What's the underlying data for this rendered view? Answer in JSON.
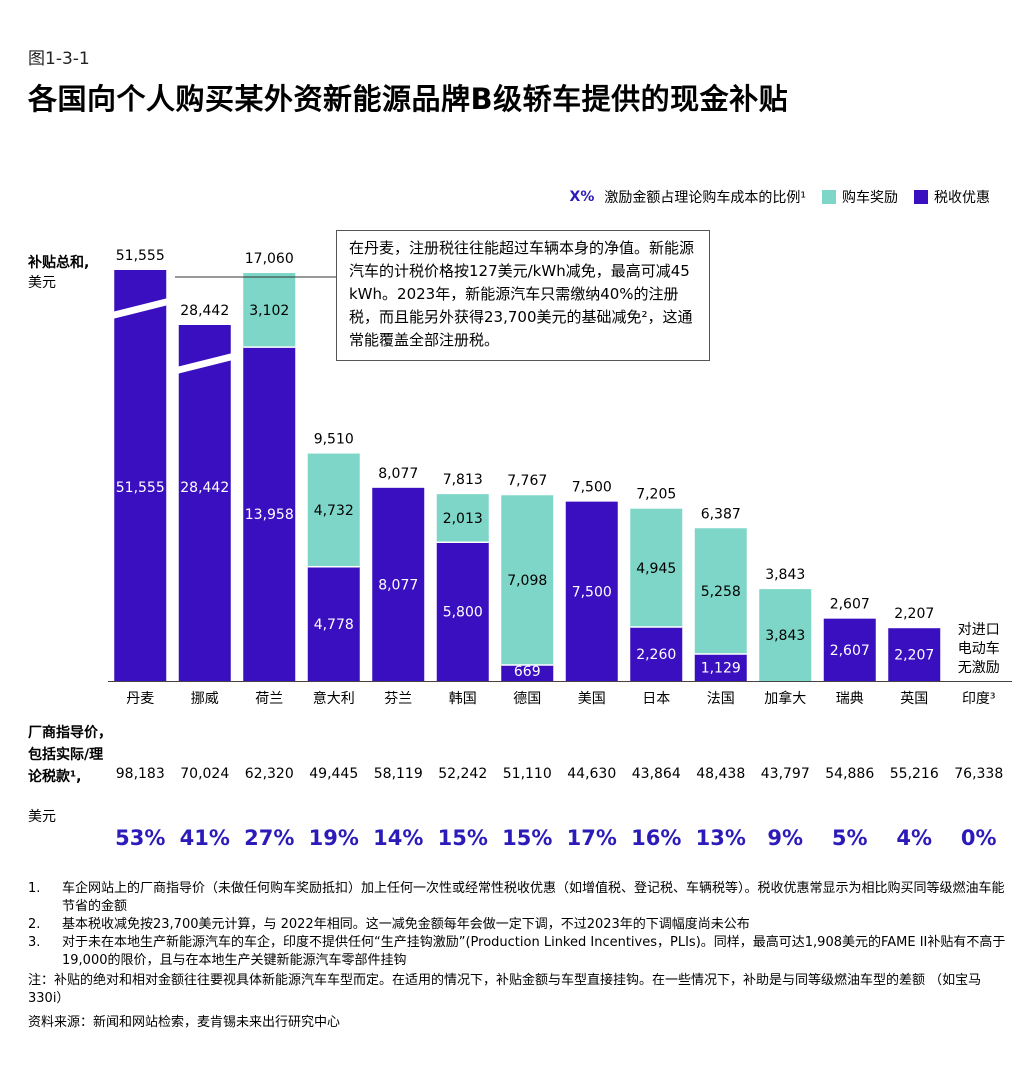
{
  "figure_number": "图1-3-1",
  "title": "各国向个人购买某外资新能源品牌B级轿车提供的现金补贴",
  "legend": {
    "pct_marker": "X%",
    "pct_label": "激励金额占理论购车成本的比例¹",
    "purchase_label": "购车奖励",
    "tax_label": "税收优惠"
  },
  "colors": {
    "purchase": "#7ed6c8",
    "tax": "#3a0fc0",
    "pct_text": "#2c1bb8"
  },
  "y_axis": {
    "title": "补贴总和,",
    "unit": "美元"
  },
  "callout": "在丹麦，注册税往往能超过车辆本身的净值。新能源汽车的计税价格按127美元/kWh减免，最高可减45 kWh。2023年，新能源汽车只需缴纳40%的注册税，而且能另外获得23,700美元的基础减免²，这通常能覆盖全部注册税。",
  "chart_data": {
    "type": "bar",
    "stacked": true,
    "categories": [
      "丹麦",
      "挪威",
      "荷兰",
      "意大利",
      "芬兰",
      "韩国",
      "德国",
      "美国",
      "日本",
      "法国",
      "加拿大",
      "瑞典",
      "英国",
      "印度³"
    ],
    "series": [
      {
        "name": "税收优惠",
        "values": [
          51555,
          28442,
          13958,
          4778,
          8077,
          5800,
          669,
          7500,
          2260,
          1129,
          0,
          2607,
          2207,
          0
        ]
      },
      {
        "name": "购车奖励",
        "values": [
          0,
          0,
          3102,
          4732,
          0,
          2013,
          7098,
          0,
          4945,
          5258,
          3843,
          0,
          0,
          0
        ]
      }
    ],
    "totals": [
      "51,555",
      "28,442",
      "17,060",
      "9,510",
      "8,077",
      "7,813",
      "7,767",
      "7,500",
      "7,205",
      "6,387",
      "3,843",
      "2,607",
      "2,207",
      ""
    ],
    "tax_labels": [
      "51,555",
      "28,442",
      "13,958",
      "4,778",
      "8,077",
      "5,800",
      "669",
      "7,500",
      "2,260",
      "1,129",
      "",
      "2,607",
      "2,207",
      ""
    ],
    "purchase_labels": [
      "",
      "",
      "3,102",
      "4,732",
      "",
      "2,013",
      "7,098",
      "",
      "4,945",
      "5,258",
      "3,843",
      "",
      "",
      ""
    ],
    "axis_breaks": [
      "丹麦",
      "挪威"
    ],
    "no_incentive_note": "对进口电动车无激励",
    "ylabel": "补贴总和,美元",
    "prices_label": "厂商指导价，包括实际/理论税款¹,",
    "prices_unit": "美元",
    "prices": [
      "98,183",
      "70,024",
      "62,320",
      "49,445",
      "58,119",
      "52,242",
      "51,110",
      "44,630",
      "43,864",
      "48,438",
      "43,797",
      "54,886",
      "55,216",
      "76,338"
    ],
    "percentages": [
      "53%",
      "41%",
      "27%",
      "19%",
      "14%",
      "15%",
      "15%",
      "17%",
      "16%",
      "13%",
      "9%",
      "5%",
      "4%",
      "0%"
    ]
  },
  "footnotes": [
    {
      "n": "1.",
      "text": "车企网站上的厂商指导价（未做任何购车奖励抵扣）加上任何一次性或经常性税收优惠（如增值税、登记税、车辆税等）。税收优惠常显示为相比购买同等级燃油车能节省的金额"
    },
    {
      "n": "2.",
      "text": "基本税收减免按23,700美元计算，与 2022年相同。这一减免金额每年会做一定下调，不过2023年的下调幅度尚未公布"
    },
    {
      "n": "3.",
      "text": "对于未在本地生产新能源汽车的车企，印度不提供任何“生产挂钩激励”(Production Linked Incentives，PLIs)。同样，最高可达1,908美元的FAME II补贴有不高于19,000的限价，且与在本地生产关键新能源汽车零部件挂钩"
    }
  ],
  "note": "注：补贴的绝对和相对金额往往要视具体新能源汽车车型而定。在适用的情况下，补贴金额与车型直接挂钩。在一些情况下，补助是与同等级燃油车型的差额 （如宝马330i）",
  "source": "资料来源：新闻和网站检索，麦肯锡未来出行研究中心"
}
